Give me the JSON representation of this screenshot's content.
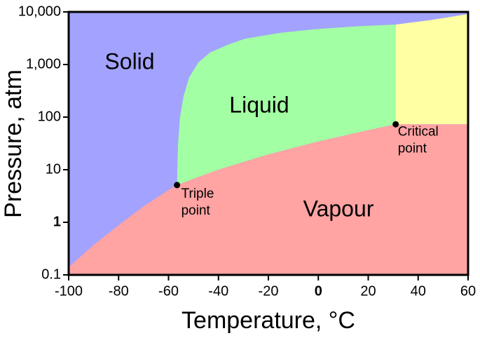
{
  "chart_data": {
    "type": "phase",
    "xlabel": "Temperature, °C",
    "ylabel": "Pressure, atm",
    "xlim": [
      -100,
      60
    ],
    "xticks": [
      -100,
      -80,
      -60,
      -40,
      -20,
      0,
      20,
      40,
      60
    ],
    "ylim": [
      0.1,
      10000
    ],
    "yticks": [
      0.1,
      1,
      10,
      100,
      {
        "value": 1000,
        "label": "1,000"
      },
      {
        "value": 10000,
        "label": "10,000"
      }
    ],
    "y_log_scale": true,
    "regions": [
      {
        "name": "Solid",
        "color": "#a3a3ff"
      },
      {
        "name": "Liquid",
        "color": "#a3ffa3"
      },
      {
        "name": "Vapour",
        "color": "#ffa3a3"
      }
    ],
    "supercritical_color": "#ffffa3",
    "sublimation": {
      "x": [
        -100,
        -90,
        -78.5,
        -70,
        -60,
        -56.6
      ],
      "values": [
        0.14,
        0.37,
        1,
        2.0,
        4.1,
        5.1
      ]
    },
    "vaporization": {
      "x": [
        -56.6,
        -50,
        -40,
        -20,
        0,
        20,
        31
      ],
      "values": [
        5.1,
        6.7,
        10,
        19.5,
        34.4,
        56.5,
        73
      ]
    },
    "melting": {
      "x": [
        -56.6,
        -56.2,
        -55.4,
        -54,
        -51.7,
        -48,
        -43.3,
        -36,
        -29.3,
        -15,
        -1.2,
        15,
        31,
        45,
        60
      ],
      "values": [
        5.1,
        30,
        100,
        250,
        575,
        1100,
        1700,
        2400,
        3100,
        4000,
        4700,
        5300,
        5750,
        7000,
        9100
      ]
    },
    "points": [
      {
        "label_lines": [
          "Triple",
          "point"
        ],
        "x": -56.6,
        "y": 5.1
      },
      {
        "label_lines": [
          "Critical",
          "point"
        ],
        "x": 31,
        "y": 73
      }
    ]
  }
}
